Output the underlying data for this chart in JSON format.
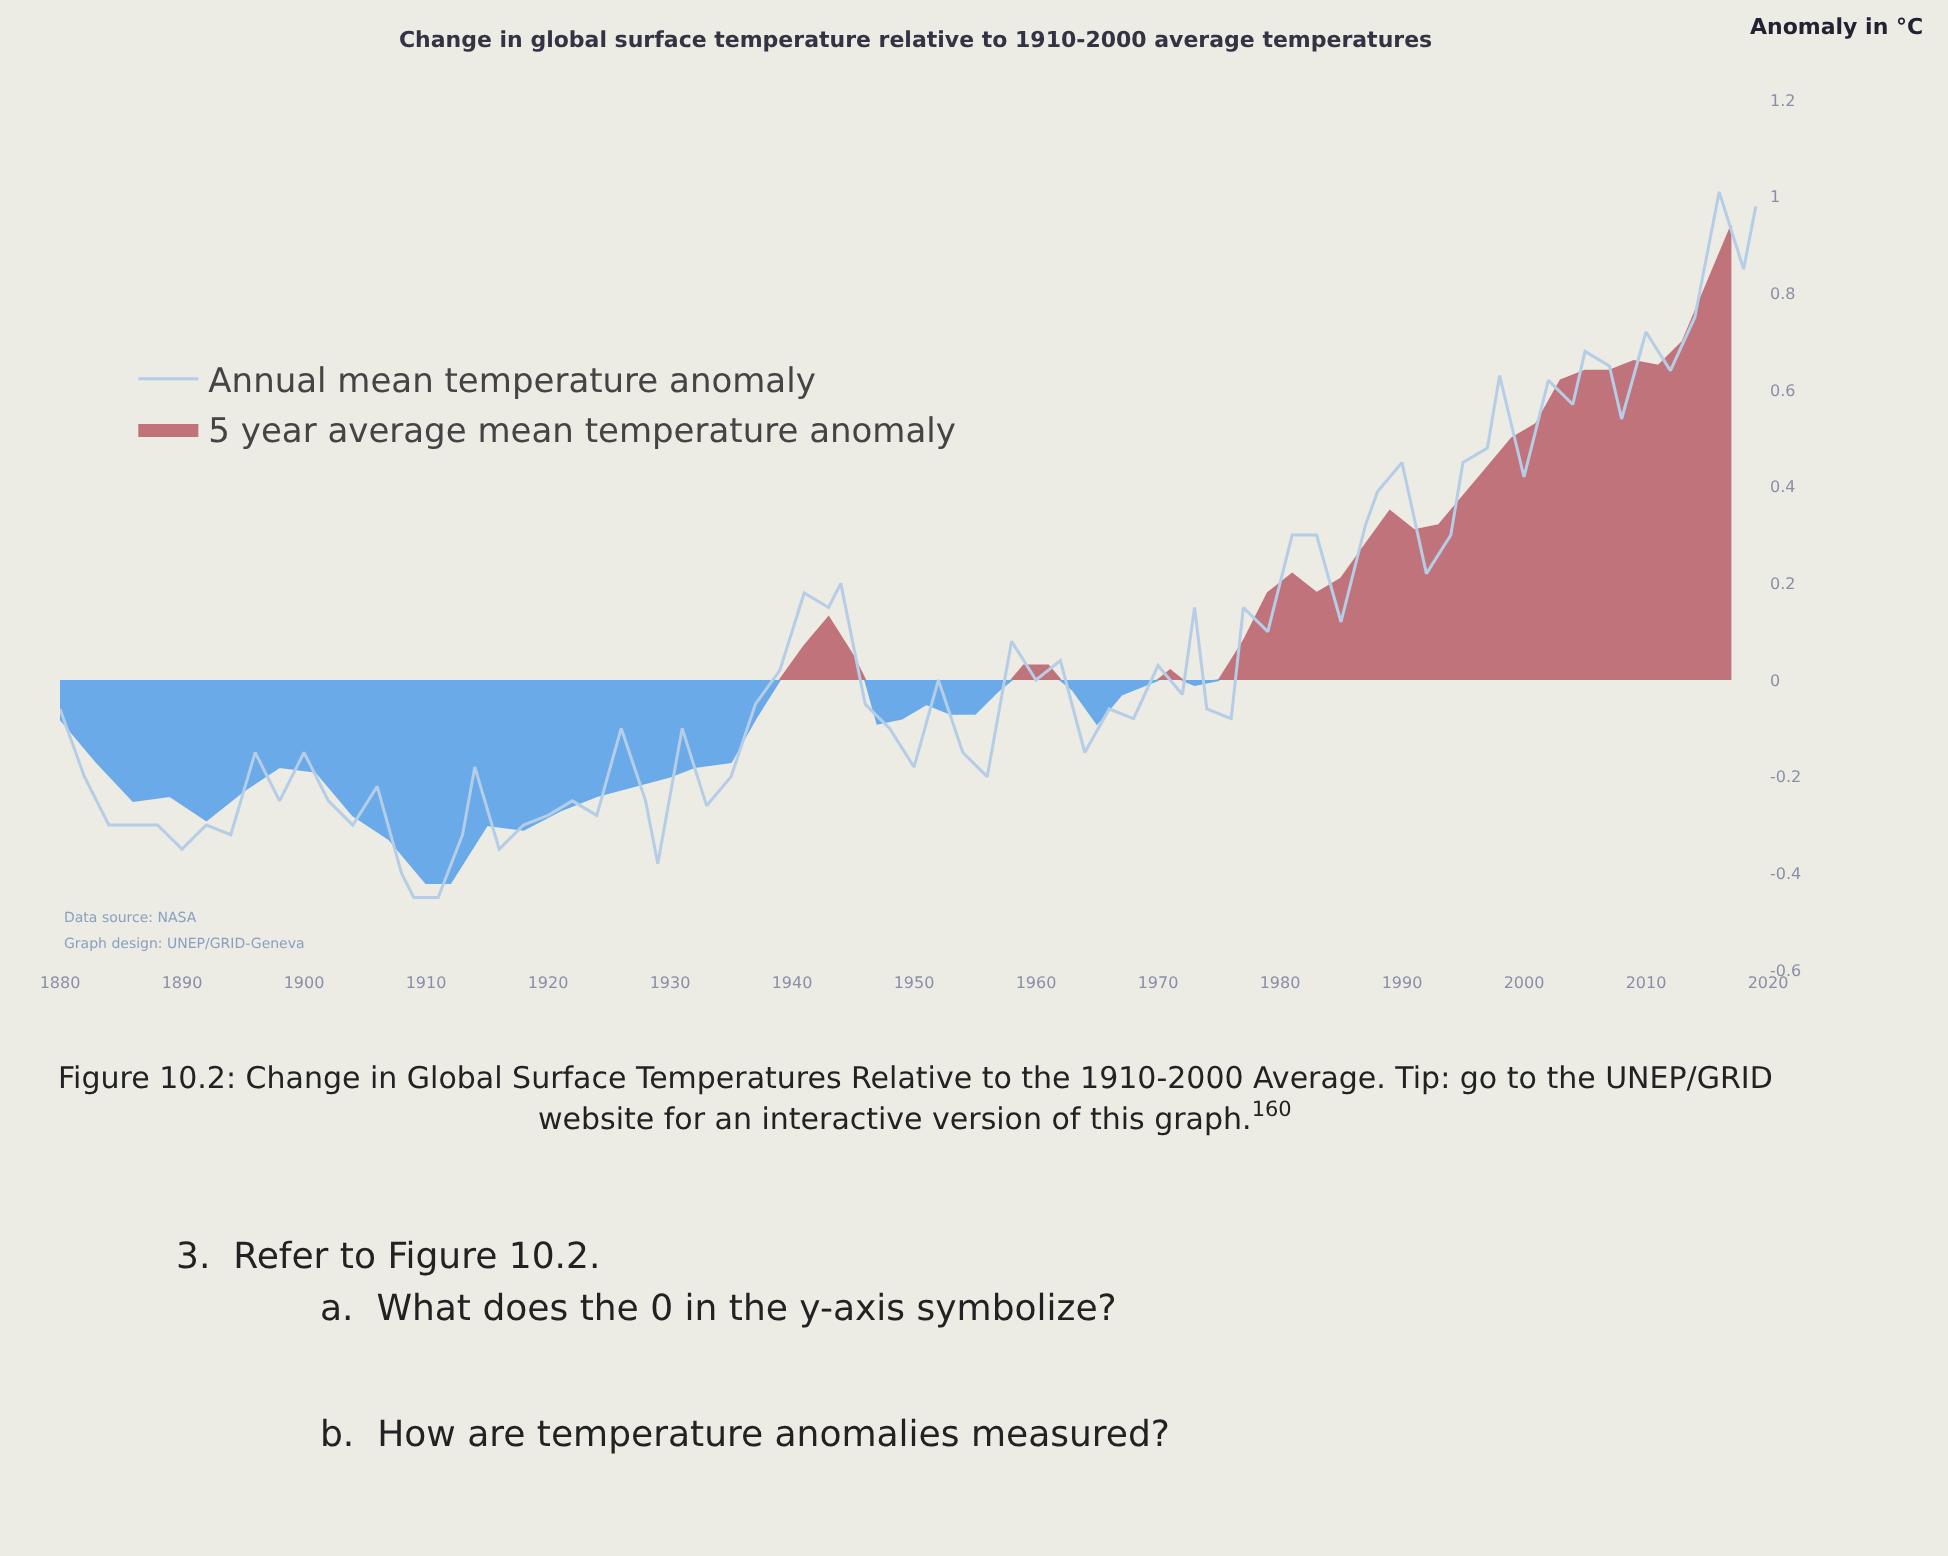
{
  "chart_data": {
    "type": "area",
    "title": "Change in global surface temperature relative to 1910-2000 average temperatures",
    "ylabel": "Anomaly in °C",
    "xlim": [
      1880,
      2020
    ],
    "xticks": [
      1880,
      1890,
      1900,
      1910,
      1920,
      1930,
      1940,
      1950,
      1960,
      1970,
      1980,
      1990,
      2000,
      2010,
      2020
    ],
    "ylim": [
      -0.6,
      1.2
    ],
    "yticks": [
      1.2,
      1,
      0.8,
      0.6,
      0.4,
      0.2,
      0,
      -0.2,
      -0.4,
      -0.6
    ],
    "grid": false,
    "legend": "top left",
    "marker": "none",
    "series": [
      {
        "type": "line",
        "name": "Annual mean temperature anomaly",
        "color": "#b5cde6",
        "x": [
          1880,
          1882,
          1884,
          1886,
          1888,
          1890,
          1892,
          1894,
          1896,
          1898,
          1900,
          1902,
          1904,
          1906,
          1908,
          1909,
          1911,
          1913,
          1914,
          1916,
          1918,
          1920,
          1922,
          1924,
          1926,
          1928,
          1929,
          1931,
          1933,
          1935,
          1937,
          1939,
          1941,
          1943,
          1944,
          1946,
          1948,
          1950,
          1952,
          1954,
          1956,
          1958,
          1960,
          1962,
          1964,
          1966,
          1968,
          1970,
          1972,
          1973,
          1974,
          1976,
          1977,
          1979,
          1981,
          1983,
          1985,
          1987,
          1988,
          1990,
          1992,
          1994,
          1995,
          1997,
          1998,
          2000,
          2002,
          2004,
          2005,
          2007,
          2008,
          2010,
          2012,
          2014,
          2016,
          2018,
          2019
        ],
        "values": [
          -0.06,
          -0.2,
          -0.3,
          -0.3,
          -0.3,
          -0.35,
          -0.3,
          -0.32,
          -0.15,
          -0.25,
          -0.15,
          -0.25,
          -0.3,
          -0.22,
          -0.4,
          -0.45,
          -0.45,
          -0.32,
          -0.18,
          -0.35,
          -0.3,
          -0.28,
          -0.25,
          -0.28,
          -0.1,
          -0.25,
          -0.38,
          -0.1,
          -0.26,
          -0.2,
          -0.05,
          0.02,
          0.18,
          0.15,
          0.2,
          -0.05,
          -0.1,
          -0.18,
          0,
          -0.15,
          -0.2,
          0.08,
          0,
          0.04,
          -0.15,
          -0.06,
          -0.08,
          0.03,
          -0.03,
          0.15,
          -0.06,
          -0.08,
          0.15,
          0.1,
          0.3,
          0.3,
          0.12,
          0.32,
          0.39,
          0.45,
          0.22,
          0.3,
          0.45,
          0.48,
          0.63,
          0.42,
          0.62,
          0.57,
          0.68,
          0.65,
          0.54,
          0.72,
          0.64,
          0.75,
          1.01,
          0.85,
          0.98
        ]
      },
      {
        "name": "5 year average mean temperature anomaly",
        "color": "#c0737a",
        "x": [
          1939,
          1941,
          1943,
          1945,
          1946,
          1947,
          1949,
          1951,
          1953,
          1955,
          1957,
          1958,
          1959,
          1961,
          1962,
          1963,
          1965,
          1967,
          1969,
          1970,
          1971,
          1972,
          1973,
          1975,
          1977,
          1979,
          1981,
          1983,
          1985,
          1987,
          1989,
          1991,
          1993,
          1995,
          1997,
          1999,
          2001,
          2003,
          2005,
          2007,
          2009,
          2011,
          2013,
          2015,
          2017
        ],
        "values": [
          0,
          0.07,
          0.13,
          0.05,
          0,
          null,
          null,
          null,
          null,
          null,
          null,
          0,
          0.03,
          0.03,
          0,
          null,
          null,
          null,
          null,
          0,
          0.02,
          0,
          null,
          0,
          0.08,
          0.18,
          0.22,
          0.18,
          0.21,
          0.28,
          0.35,
          0.31,
          0.32,
          0.38,
          0.44,
          0.5,
          0.53,
          0.62,
          0.64,
          0.64,
          0.66,
          0.65,
          0.7,
          0.82,
          0.94
        ]
      },
      {
        "color": "#6aaae8",
        "x": [
          1880,
          1883,
          1886,
          1889,
          1892,
          1895,
          1898,
          1901,
          1904,
          1907,
          1910,
          1912,
          1915,
          1918,
          1921,
          1924,
          1927,
          1930,
          1932,
          1935,
          1937,
          1939,
          1941,
          1943,
          1945,
          1946,
          1947,
          1949,
          1951,
          1953,
          1955,
          1957,
          1958,
          1959,
          1961,
          1962,
          1963,
          1965,
          1967,
          1969,
          1970,
          1971,
          1972,
          1973,
          1975
        ],
        "values": [
          -0.08,
          -0.17,
          -0.25,
          -0.24,
          -0.29,
          -0.23,
          -0.18,
          -0.19,
          -0.28,
          -0.33,
          -0.42,
          -0.42,
          -0.3,
          -0.31,
          -0.27,
          -0.24,
          -0.22,
          -0.2,
          -0.18,
          -0.17,
          -0.08,
          0,
          null,
          null,
          null,
          0,
          -0.09,
          -0.08,
          -0.05,
          -0.07,
          -0.07,
          -0.02,
          0,
          null,
          null,
          0,
          -0.02,
          -0.09,
          -0.03,
          -0.01,
          0,
          null,
          0,
          -0.01,
          0
        ]
      }
    ],
    "annotations": [
      "Data source: NASA",
      "Graph design: UNEP/GRID-Geneva",
      "Figure 10.2: Change in Global Surface Temperatures Relative to the 1910-2000 Average. Tip: go to the UNEP/GRID",
      "website for an interactive version of this graph.$^{160}$",
      "3.  Refer to Figure 10.2.",
      "a.  What does the 0 in the y-axis symbolize?",
      "b.  How are temperature anomalies measured?"
    ]
  }
}
